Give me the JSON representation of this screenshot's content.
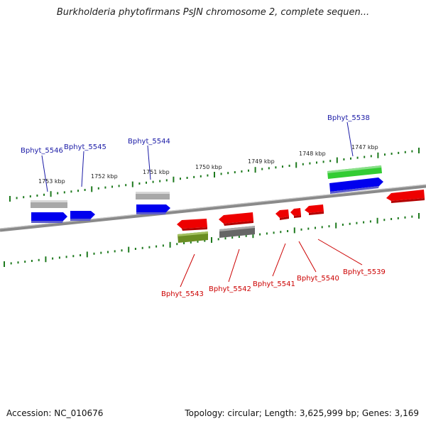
{
  "title": "Burkholderia phytofirmans PsJN chromosome 2, complete sequen...",
  "footer": {
    "accession": "Accession: NC_010676",
    "summary": "Topology: circular; Length: 3,625,999 bp; Genes: 3,169"
  },
  "colors": {
    "upper_label": "#1a1aa6",
    "lower_label": "#cc0000",
    "tick": "#1e7a1e",
    "backbone": "#808080"
  },
  "kbp_ticks": [
    "1753 kbp",
    "1752 kbp",
    "1751 kbp",
    "1750 kbp",
    "1749 kbp",
    "1748 kbp",
    "1747 kbp"
  ],
  "upper_genes": [
    "Bphyt_5546",
    "Bphyt_5545",
    "Bphyt_5544",
    "Bphyt_5538"
  ],
  "lower_genes": [
    "Bphyt_5543",
    "Bphyt_5542",
    "Bphyt_5541",
    "Bphyt_5540",
    "Bphyt_5539"
  ]
}
